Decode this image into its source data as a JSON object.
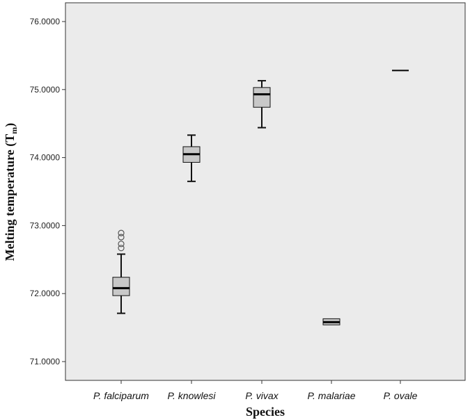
{
  "chart_data": {
    "type": "boxplot",
    "title": "",
    "xlabel": "Species",
    "ylabel": "Melting temperature (T",
    "ylabel_sub": "m",
    "ylabel_close": ")",
    "ylim": [
      70.9,
      76.2
    ],
    "yticks": [
      71.0,
      72.0,
      73.0,
      74.0,
      75.0,
      76.0
    ],
    "ytick_labels": [
      "71.0000",
      "72.0000",
      "73.0000",
      "74.0000",
      "75.0000",
      "76.0000"
    ],
    "grid": false,
    "plot_background": "#ebebeb",
    "box_fill": "#c8c8c8",
    "categories": [
      "P. falciparum",
      "P. knowlesi",
      "P. vivax",
      "P. malariae",
      "P. ovale"
    ],
    "boxes": [
      {
        "category": "P. falciparum",
        "whisker_low": 71.71,
        "q1": 71.97,
        "median": 72.08,
        "q3": 72.24,
        "whisker_high": 72.58,
        "outliers": [
          72.67,
          72.73,
          72.83,
          72.89
        ]
      },
      {
        "category": "P. knowlesi",
        "whisker_low": 73.65,
        "q1": 73.93,
        "median": 74.05,
        "q3": 74.16,
        "whisker_high": 74.33,
        "outliers": []
      },
      {
        "category": "P. vivax",
        "whisker_low": 74.44,
        "q1": 74.74,
        "median": 74.93,
        "q3": 75.03,
        "whisker_high": 75.13,
        "outliers": []
      },
      {
        "category": "P. malariae",
        "whisker_low": 71.54,
        "q1": 71.54,
        "median": 71.58,
        "q3": 71.63,
        "whisker_high": 71.63,
        "outliers": []
      },
      {
        "category": "P. ovale",
        "whisker_low": 75.28,
        "q1": 75.28,
        "median": 75.28,
        "q3": 75.28,
        "whisker_high": 75.28,
        "outliers": []
      }
    ]
  }
}
